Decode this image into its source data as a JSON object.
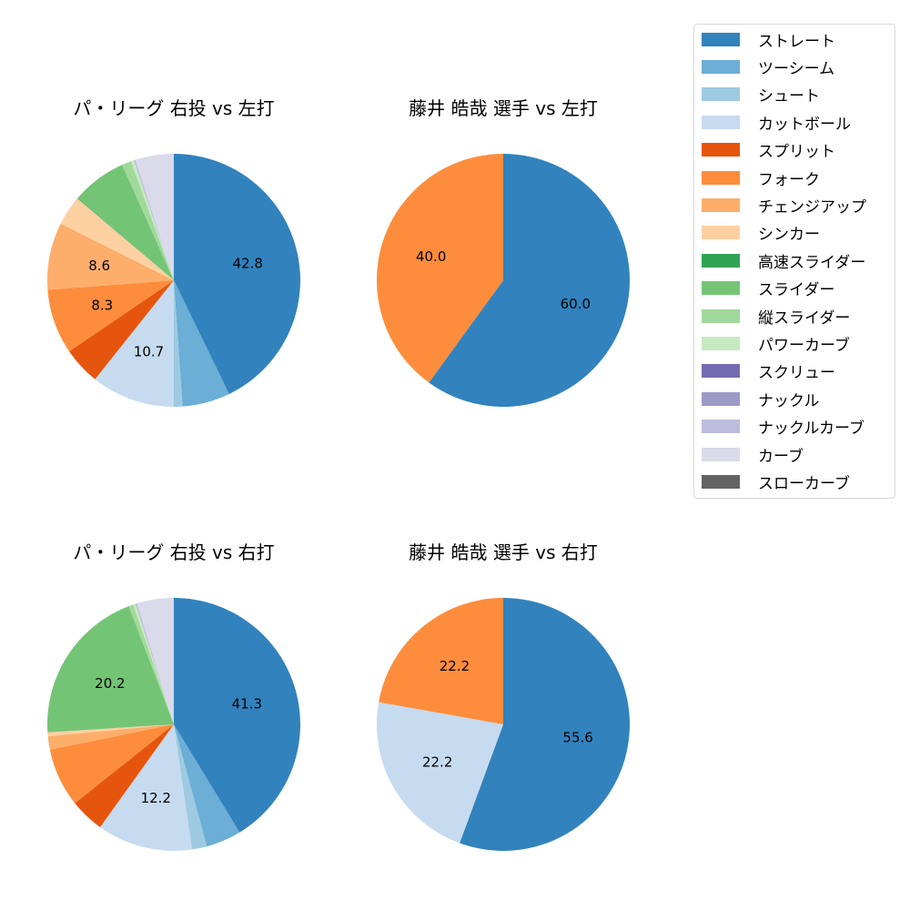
{
  "legend": {
    "items": [
      {
        "label": "ストレート",
        "color": "#3182bd"
      },
      {
        "label": "ツーシーム",
        "color": "#6baed6"
      },
      {
        "label": "シュート",
        "color": "#9ecae1"
      },
      {
        "label": "カットボール",
        "color": "#c6dbef"
      },
      {
        "label": "スプリット",
        "color": "#e6550d"
      },
      {
        "label": "フォーク",
        "color": "#fd8d3c"
      },
      {
        "label": "チェンジアップ",
        "color": "#fdae6b"
      },
      {
        "label": "シンカー",
        "color": "#fdd0a2"
      },
      {
        "label": "高速スライダー",
        "color": "#31a354"
      },
      {
        "label": "スライダー",
        "color": "#74c476"
      },
      {
        "label": "縦スライダー",
        "color": "#a1d99b"
      },
      {
        "label": "パワーカーブ",
        "color": "#c7e9c0"
      },
      {
        "label": "スクリュー",
        "color": "#756bb1"
      },
      {
        "label": "ナックル",
        "color": "#9e9ac8"
      },
      {
        "label": "ナックルカーブ",
        "color": "#bcbddc"
      },
      {
        "label": "カーブ",
        "color": "#dadaeb"
      },
      {
        "label": "スローカーブ",
        "color": "#636363"
      }
    ]
  },
  "chart_data": [
    {
      "type": "pie",
      "title": "パ・リーグ 右投 vs 左打",
      "categories": [
        "ストレート",
        "ツーシーム",
        "シュート",
        "カットボール",
        "スプリット",
        "フォーク",
        "チェンジアップ",
        "シンカー",
        "高速スライダー",
        "スライダー",
        "縦スライダー",
        "パワーカーブ",
        "ナックルカーブ",
        "カーブ"
      ],
      "values": [
        42.8,
        6.1,
        1.1,
        10.7,
        4.8,
        8.3,
        8.6,
        3.8,
        0.1,
        7.0,
        1.2,
        0.4,
        0.2,
        4.9
      ],
      "labels_shown": [
        "42.8",
        "",
        "",
        "10.7",
        "",
        "8.3",
        "8.6",
        "",
        "",
        "",
        "",
        "",
        "",
        ""
      ],
      "start_angle": 90,
      "direction": "clockwise"
    },
    {
      "type": "pie",
      "title": "藤井 皓哉 選手 vs 左打",
      "categories": [
        "ストレート",
        "フォーク"
      ],
      "values": [
        60.0,
        40.0
      ],
      "labels_shown": [
        "60.0",
        "40.0"
      ],
      "start_angle": 90,
      "direction": "clockwise"
    },
    {
      "type": "pie",
      "title": "パ・リーグ 右投 vs 右打",
      "categories": [
        "ストレート",
        "ツーシーム",
        "シュート",
        "カットボール",
        "スプリット",
        "フォーク",
        "チェンジアップ",
        "シンカー",
        "スライダー",
        "縦スライダー",
        "パワーカーブ",
        "ナックルカーブ",
        "カーブ"
      ],
      "values": [
        41.3,
        4.5,
        1.9,
        12.2,
        4.4,
        7.5,
        1.7,
        0.5,
        20.2,
        0.6,
        0.3,
        0.2,
        4.7
      ],
      "labels_shown": [
        "41.3",
        "",
        "",
        "12.2",
        "",
        "",
        "",
        "",
        "20.2",
        "",
        "",
        "",
        ""
      ],
      "start_angle": 90,
      "direction": "clockwise"
    },
    {
      "type": "pie",
      "title": "藤井 皓哉 選手 vs 右打",
      "categories": [
        "ストレート",
        "カットボール",
        "フォーク"
      ],
      "values": [
        55.6,
        22.2,
        22.2
      ],
      "labels_shown": [
        "55.6",
        "22.2",
        "22.2"
      ],
      "start_angle": 90,
      "direction": "clockwise"
    }
  ]
}
